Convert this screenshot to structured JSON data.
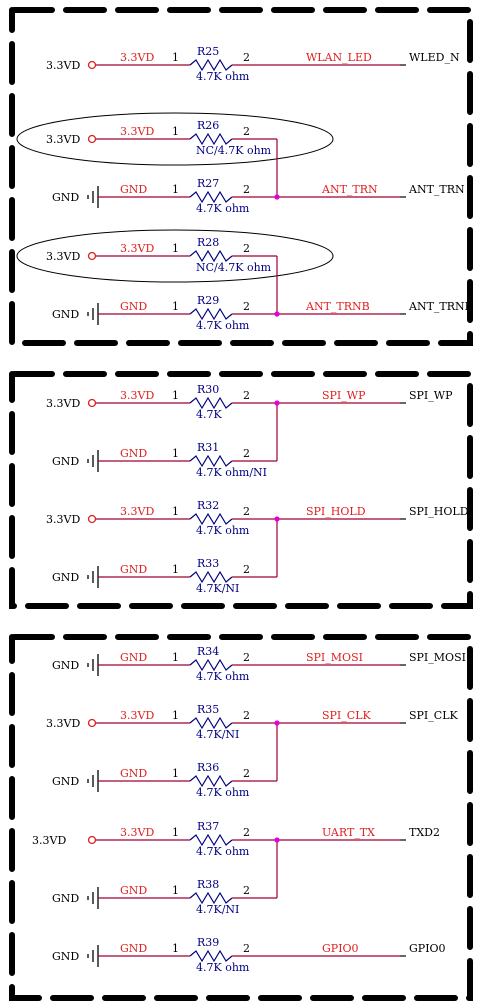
{
  "rows": [
    {
      "src": "3.3VD",
      "type": "vcc",
      "net_in": "3.3VD",
      "ref": "R25",
      "value": "4.7K ohm",
      "pin1": "1",
      "pin2": "2",
      "net_out": "WLAN_LED",
      "port": "WLED_N"
    },
    {
      "src": "3.3VD",
      "type": "vcc",
      "net_in": "3.3VD",
      "ref": "R26",
      "value": "NC/4.7K ohm",
      "pin1": "1",
      "pin2": "2",
      "net_out": "",
      "port": ""
    },
    {
      "src": "GND",
      "type": "gnd",
      "net_in": "GND",
      "ref": "R27",
      "value": "4.7K ohm",
      "pin1": "1",
      "pin2": "2",
      "net_out": "ANT_TRN",
      "port": "ANT_TRN"
    },
    {
      "src": "3.3VD",
      "type": "vcc",
      "net_in": "3.3VD",
      "ref": "R28",
      "value": "NC/4.7K ohm",
      "pin1": "1",
      "pin2": "2",
      "net_out": "",
      "port": ""
    },
    {
      "src": "GND",
      "type": "gnd",
      "net_in": "GND",
      "ref": "R29",
      "value": "4.7K ohm",
      "pin1": "1",
      "pin2": "2",
      "net_out": "ANT_TRNB",
      "port": "ANT_TRNB"
    },
    {
      "src": "3.3VD",
      "type": "vcc",
      "net_in": "3.3VD",
      "ref": "R30",
      "value": "4.7K",
      "pin1": "1",
      "pin2": "2",
      "net_out": "SPI_WP",
      "port": "SPI_WP"
    },
    {
      "src": "GND",
      "type": "gnd",
      "net_in": "GND",
      "ref": "R31",
      "value": "4.7K ohm/NI",
      "pin1": "1",
      "pin2": "2",
      "net_out": "",
      "port": ""
    },
    {
      "src": "3.3VD",
      "type": "vcc",
      "net_in": "3.3VD",
      "ref": "R32",
      "value": "4.7K ohm",
      "pin1": "1",
      "pin2": "2",
      "net_out": "SPI_HOLD",
      "port": "SPI_HOLD"
    },
    {
      "src": "GND",
      "type": "gnd",
      "net_in": "GND",
      "ref": "R33",
      "value": "4.7K/NI",
      "pin1": "1",
      "pin2": "2",
      "net_out": "",
      "port": ""
    },
    {
      "src": "GND",
      "type": "gnd",
      "net_in": "GND",
      "ref": "R34",
      "value": "4.7K ohm",
      "pin1": "1",
      "pin2": "2",
      "net_out": "SPI_MOSI",
      "port": "SPI_MOSI"
    },
    {
      "src": "3.3VD",
      "type": "vcc",
      "net_in": "3.3VD",
      "ref": "R35",
      "value": "4.7K/NI",
      "pin1": "1",
      "pin2": "2",
      "net_out": "SPI_CLK",
      "port": "SPI_CLK"
    },
    {
      "src": "GND",
      "type": "gnd",
      "net_in": "GND",
      "ref": "R36",
      "value": "4.7K ohm",
      "pin1": "1",
      "pin2": "2",
      "net_out": "",
      "port": ""
    },
    {
      "src": "3.3VD",
      "type": "vcc",
      "net_in": "3.3VD",
      "ref": "R37",
      "value": "4.7K ohm",
      "pin1": "1",
      "pin2": "2",
      "net_out": "UART_TX",
      "port": "TXD2"
    },
    {
      "src": "GND",
      "type": "gnd",
      "net_in": "GND",
      "ref": "R38",
      "value": "4.7K/NI",
      "pin1": "1",
      "pin2": "2",
      "net_out": "",
      "port": ""
    },
    {
      "src": "GND",
      "type": "gnd",
      "net_in": "GND",
      "ref": "R39",
      "value": "4.7K ohm",
      "pin1": "1",
      "pin2": "2",
      "net_out": "GPIO0",
      "port": "GPIO0"
    }
  ],
  "colors": {
    "wire": "#a00030",
    "net_label": "#e02020",
    "component": "#000080",
    "junction": "#e000e0"
  }
}
